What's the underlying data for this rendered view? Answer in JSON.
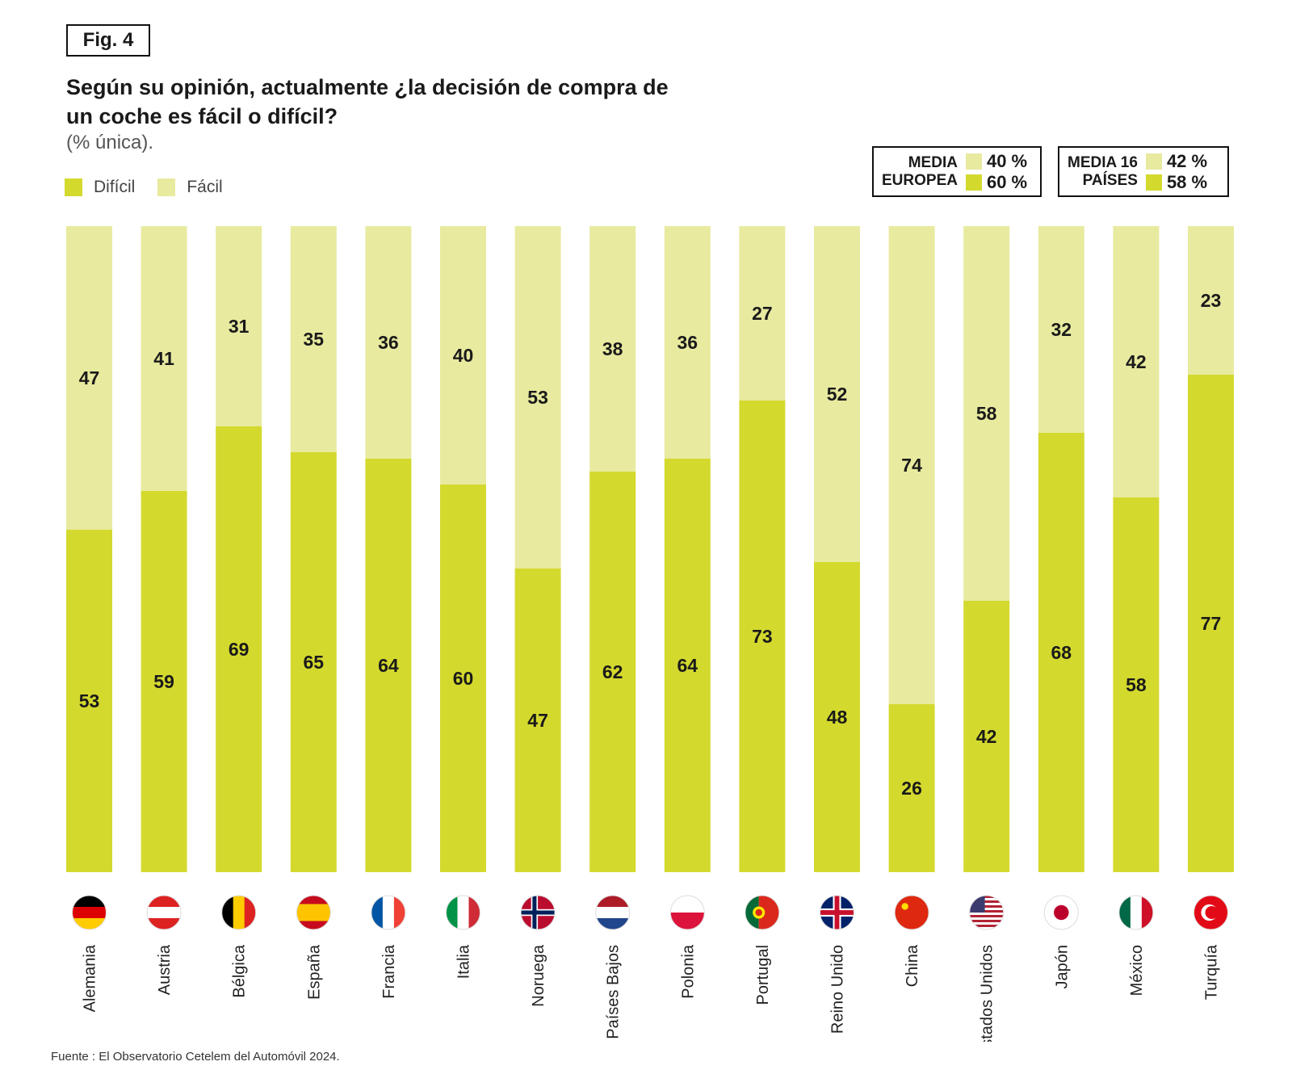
{
  "figure": {
    "label": "Fig. 4",
    "title": "Según su opinión, actualmente ¿la decisión de compra de un coche es fácil o difícil?",
    "subtitle": "(% única).",
    "source": "Fuente : El Observatorio Cetelem del Automóvil 2024."
  },
  "legend": {
    "dificil": "Difícil",
    "facil": "Fácil"
  },
  "averages": {
    "europe": {
      "label_line1": "MEDIA",
      "label_line2": "EUROPEA",
      "facil": "40 %",
      "dificil": "60 %"
    },
    "sixteen": {
      "label_line1": "MEDIA 16",
      "label_line2": "PAÍSES",
      "facil": "42 %",
      "dificil": "58 %"
    }
  },
  "colors": {
    "dificil": "#d4d92e",
    "facil": "#e8ea9f"
  },
  "chart_data": {
    "type": "bar",
    "stacked": true,
    "percent_stacked": true,
    "title": "Según su opinión, actualmente ¿la decisión de compra de un coche es fácil o difícil?",
    "ylim": [
      0,
      100
    ],
    "categories": [
      "Alemania",
      "Austria",
      "Bélgica",
      "España",
      "Francia",
      "Italia",
      "Noruega",
      "Países Bajos",
      "Polonia",
      "Portugal",
      "Reino Unido",
      "China",
      "Estados Unidos",
      "Japón",
      "México",
      "Turquía"
    ],
    "series": [
      {
        "name": "Difícil",
        "values": [
          53,
          59,
          69,
          65,
          64,
          60,
          47,
          62,
          64,
          73,
          48,
          26,
          42,
          68,
          58,
          77
        ]
      },
      {
        "name": "Fácil",
        "values": [
          47,
          41,
          31,
          35,
          36,
          40,
          53,
          38,
          36,
          27,
          52,
          74,
          58,
          32,
          42,
          23
        ]
      }
    ],
    "legend": "top-left"
  }
}
